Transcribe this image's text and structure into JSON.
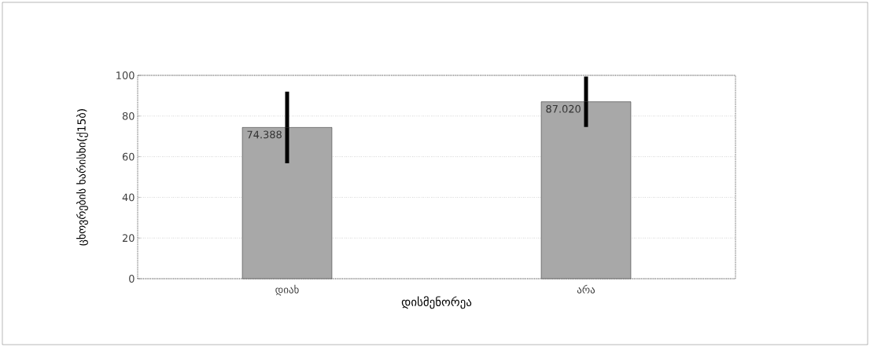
{
  "chart_data": {
    "type": "bar",
    "xlabel": "დისმენორეა",
    "ylabel": "ცხოვრების ხარისხი(ქ15ბ)",
    "categories": [
      "დიახ",
      "არა"
    ],
    "values": [
      74.388,
      87.02
    ],
    "value_labels": [
      "74.388",
      "87.020"
    ],
    "errors": [
      17.6,
      12.4
    ],
    "color": "#a8a8a8",
    "ylim": [
      0,
      100
    ],
    "yticks": [
      0,
      20,
      40,
      60,
      80,
      100
    ],
    "grid": "y"
  }
}
